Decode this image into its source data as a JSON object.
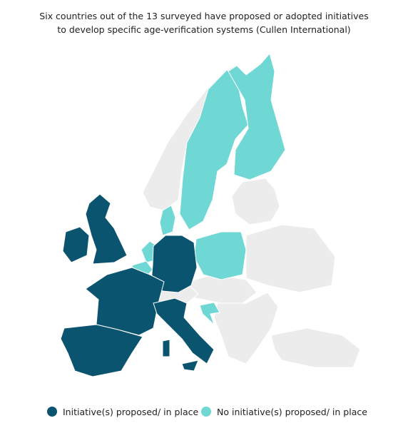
{
  "title": [
    "Six countries out of the 13 surveyed have proposed or adopted initiatives",
    "to develop specific age-verification systems (Cullen International)"
  ],
  "legend": [
    {
      "label": "Initiative(s) proposed/ in place",
      "color": "#0b5470"
    },
    {
      "label": "No initiative(s) proposed/ in place",
      "color": "#6fd8d4"
    }
  ],
  "other_color": "#ececec"
}
